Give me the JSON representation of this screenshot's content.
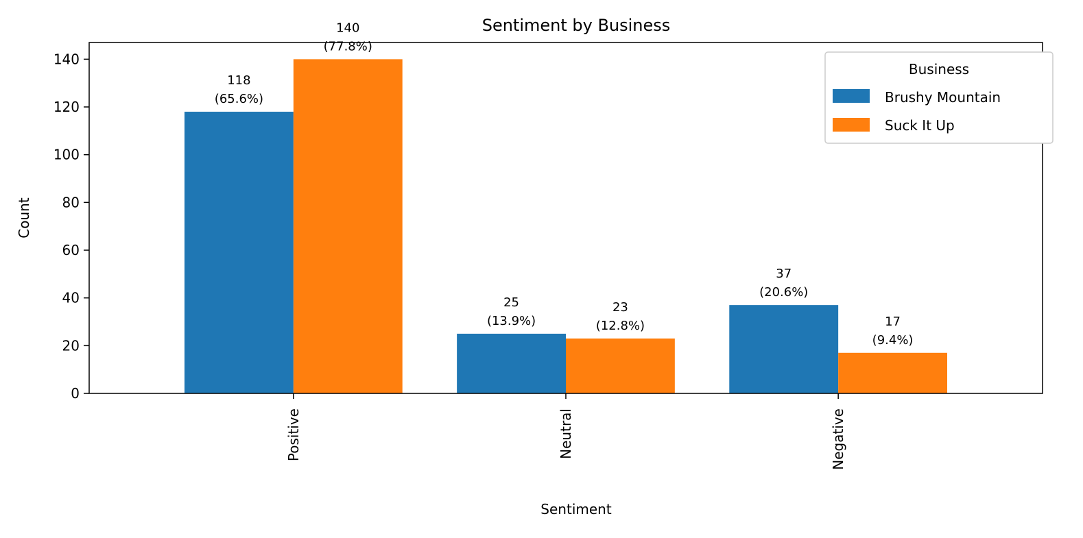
{
  "chart_data": {
    "type": "bar",
    "title": "Sentiment by Business",
    "xlabel": "Sentiment",
    "ylabel": "Count",
    "categories": [
      "Positive",
      "Neutral",
      "Negative"
    ],
    "series": [
      {
        "name": "Brushy Mountain",
        "color": "#1f77b4",
        "values": [
          118,
          25,
          37
        ],
        "percents": [
          "65.6%",
          "13.9%",
          "20.6%"
        ]
      },
      {
        "name": "Suck It Up",
        "color": "#ff7f0e",
        "values": [
          140,
          23,
          17
        ],
        "percents": [
          "77.8%",
          "12.8%",
          "9.4%"
        ]
      }
    ],
    "ylim": [
      0,
      147
    ],
    "yticks": [
      0,
      20,
      40,
      60,
      80,
      100,
      120,
      140
    ],
    "legend": {
      "title": "Business",
      "placement": "top-right"
    },
    "grid": false
  }
}
